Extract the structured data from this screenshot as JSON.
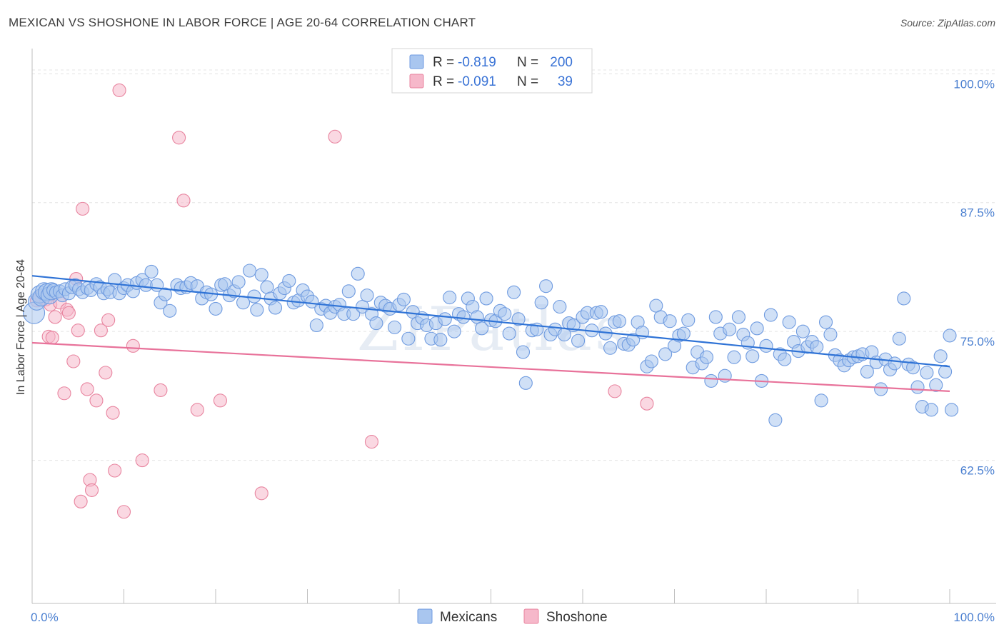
{
  "title": "MEXICAN VS SHOSHONE IN LABOR FORCE | AGE 20-64 CORRELATION CHART",
  "source": "Source: ZipAtlas.com",
  "watermark": "ZIPatlas",
  "legend_top": [
    {
      "r_label": "R =",
      "r_value": "-0.819",
      "n_label": "N =",
      "n_value": "200",
      "color": "#a9c6ef",
      "stroke": "#6f9be0"
    },
    {
      "r_label": "R =",
      "r_value": "-0.091",
      "n_label": "N =",
      "n_value": "39",
      "color": "#f6b8ca",
      "stroke": "#e8849f"
    }
  ],
  "legend_bottom": [
    {
      "label": "Mexicans",
      "color": "#a9c6ef",
      "stroke": "#6f9be0"
    },
    {
      "label": "Shoshone",
      "color": "#f6b8ca",
      "stroke": "#e8849f"
    }
  ],
  "chart_data": {
    "type": "scatter",
    "title": "MEXICAN VS SHOSHONE IN LABOR FORCE | AGE 20-64 CORRELATION CHART",
    "xlabel": "",
    "ylabel": "In Labor Force | Age 20-64",
    "xlim": [
      0,
      100
    ],
    "ylim": [
      50,
      103
    ],
    "x_tick_labels": [
      "0.0%",
      "100.0%"
    ],
    "y_ticks": [
      100.0,
      87.5,
      75.0,
      62.5
    ],
    "y_tick_labels": [
      "100.0%",
      "87.5%",
      "75.0%",
      "62.5%"
    ],
    "grid": "horizontal dashed",
    "legend_position": "top-center",
    "series": [
      {
        "name": "Mexicans",
        "color": "#6f9be0",
        "fill": "#a9c6ef",
        "trend": {
          "x": [
            0,
            100
          ],
          "y": [
            80.4,
            71.6
          ]
        },
        "points": [
          [
            0.2,
            76.8
          ],
          [
            0.5,
            77.9
          ],
          [
            0.8,
            78.6
          ],
          [
            1.0,
            78.3
          ],
          [
            1.3,
            78.9
          ],
          [
            1.6,
            78.8
          ],
          [
            1.9,
            78.5
          ],
          [
            2.1,
            78.9
          ],
          [
            2.3,
            79.0
          ],
          [
            2.6,
            78.8
          ],
          [
            3.0,
            78.9
          ],
          [
            3.3,
            78.5
          ],
          [
            3.6,
            79.1
          ],
          [
            4.0,
            78.7
          ],
          [
            4.3,
            79.3
          ],
          [
            4.7,
            79.5
          ],
          [
            5.1,
            79.1
          ],
          [
            5.5,
            78.8
          ],
          [
            6.0,
            79.2
          ],
          [
            6.4,
            79.0
          ],
          [
            7.0,
            79.6
          ],
          [
            7.4,
            79.3
          ],
          [
            7.8,
            78.7
          ],
          [
            8.2,
            79.1
          ],
          [
            8.5,
            78.8
          ],
          [
            9.0,
            80.0
          ],
          [
            9.5,
            78.7
          ],
          [
            10.0,
            79.2
          ],
          [
            10.4,
            79.5
          ],
          [
            11.0,
            78.9
          ],
          [
            11.4,
            79.7
          ],
          [
            12.0,
            80.0
          ],
          [
            12.4,
            79.5
          ],
          [
            13.0,
            80.8
          ],
          [
            13.6,
            79.5
          ],
          [
            14.0,
            77.8
          ],
          [
            14.5,
            78.6
          ],
          [
            15.0,
            77.0
          ],
          [
            15.8,
            79.5
          ],
          [
            16.2,
            79.2
          ],
          [
            16.8,
            79.3
          ],
          [
            17.3,
            79.7
          ],
          [
            18.0,
            79.4
          ],
          [
            18.5,
            78.2
          ],
          [
            19.0,
            78.8
          ],
          [
            19.5,
            78.6
          ],
          [
            20.0,
            77.2
          ],
          [
            20.6,
            79.5
          ],
          [
            21.0,
            79.6
          ],
          [
            21.5,
            78.5
          ],
          [
            22.0,
            78.9
          ],
          [
            22.5,
            79.8
          ],
          [
            23.0,
            77.8
          ],
          [
            23.7,
            80.9
          ],
          [
            24.2,
            78.4
          ],
          [
            24.5,
            77.1
          ],
          [
            25.0,
            80.5
          ],
          [
            25.6,
            79.3
          ],
          [
            26.0,
            78.2
          ],
          [
            26.5,
            77.3
          ],
          [
            27.0,
            78.7
          ],
          [
            27.5,
            79.2
          ],
          [
            28.0,
            79.9
          ],
          [
            28.5,
            77.8
          ],
          [
            29.0,
            78.0
          ],
          [
            29.5,
            79.0
          ],
          [
            30.0,
            78.4
          ],
          [
            30.5,
            77.9
          ],
          [
            31.0,
            75.6
          ],
          [
            31.5,
            77.2
          ],
          [
            32.0,
            77.5
          ],
          [
            32.5,
            76.8
          ],
          [
            33.0,
            77.4
          ],
          [
            33.5,
            77.6
          ],
          [
            34.0,
            76.7
          ],
          [
            34.5,
            78.9
          ],
          [
            35.0,
            76.7
          ],
          [
            35.5,
            80.6
          ],
          [
            36.0,
            77.4
          ],
          [
            36.5,
            78.5
          ],
          [
            37.0,
            76.7
          ],
          [
            37.5,
            75.8
          ],
          [
            38.0,
            77.8
          ],
          [
            38.5,
            77.5
          ],
          [
            39.0,
            77.2
          ],
          [
            39.5,
            75.4
          ],
          [
            40.0,
            77.6
          ],
          [
            40.5,
            78.1
          ],
          [
            41.0,
            74.3
          ],
          [
            41.5,
            76.9
          ],
          [
            42.0,
            75.8
          ],
          [
            42.5,
            76.3
          ],
          [
            43.0,
            75.6
          ],
          [
            43.5,
            74.3
          ],
          [
            44.0,
            75.8
          ],
          [
            44.5,
            74.2
          ],
          [
            45.0,
            76.2
          ],
          [
            45.5,
            78.3
          ],
          [
            46.0,
            75.0
          ],
          [
            46.5,
            76.7
          ],
          [
            47.0,
            76.4
          ],
          [
            47.5,
            78.2
          ],
          [
            48.0,
            77.4
          ],
          [
            48.5,
            76.4
          ],
          [
            49.0,
            75.3
          ],
          [
            49.5,
            78.2
          ],
          [
            50.0,
            76.1
          ],
          [
            50.5,
            76.0
          ],
          [
            51.0,
            77.0
          ],
          [
            51.5,
            76.7
          ],
          [
            52.0,
            74.8
          ],
          [
            52.5,
            78.8
          ],
          [
            53.0,
            76.2
          ],
          [
            53.5,
            73.0
          ],
          [
            53.8,
            70.0
          ],
          [
            54.5,
            75.1
          ],
          [
            55.0,
            75.2
          ],
          [
            55.5,
            77.8
          ],
          [
            56.0,
            79.4
          ],
          [
            56.5,
            74.7
          ],
          [
            57.0,
            75.2
          ],
          [
            57.5,
            77.4
          ],
          [
            58.0,
            74.7
          ],
          [
            58.5,
            75.8
          ],
          [
            59.0,
            75.6
          ],
          [
            59.5,
            74.1
          ],
          [
            60.0,
            76.4
          ],
          [
            60.5,
            76.8
          ],
          [
            61.0,
            75.1
          ],
          [
            61.5,
            76.8
          ],
          [
            62.0,
            76.9
          ],
          [
            62.5,
            74.8
          ],
          [
            63.0,
            73.4
          ],
          [
            63.5,
            75.9
          ],
          [
            64.0,
            76.0
          ],
          [
            64.5,
            73.8
          ],
          [
            65.0,
            73.7
          ],
          [
            65.5,
            74.2
          ],
          [
            66.0,
            75.9
          ],
          [
            66.5,
            74.9
          ],
          [
            67.0,
            71.6
          ],
          [
            67.5,
            72.1
          ],
          [
            68.0,
            77.5
          ],
          [
            68.5,
            76.4
          ],
          [
            69.0,
            72.8
          ],
          [
            69.5,
            76.0
          ],
          [
            70.0,
            73.6
          ],
          [
            70.5,
            74.6
          ],
          [
            71.0,
            74.8
          ],
          [
            71.5,
            76.1
          ],
          [
            72.0,
            71.5
          ],
          [
            72.5,
            73.0
          ],
          [
            73.0,
            71.9
          ],
          [
            73.5,
            72.5
          ],
          [
            74.0,
            70.2
          ],
          [
            74.5,
            76.4
          ],
          [
            75.0,
            74.8
          ],
          [
            75.5,
            70.7
          ],
          [
            76.0,
            75.2
          ],
          [
            76.5,
            72.5
          ],
          [
            77.0,
            76.4
          ],
          [
            77.5,
            74.7
          ],
          [
            78.0,
            73.9
          ],
          [
            78.5,
            72.6
          ],
          [
            79.0,
            75.3
          ],
          [
            79.5,
            70.2
          ],
          [
            80.0,
            73.6
          ],
          [
            80.5,
            76.6
          ],
          [
            81.0,
            66.4
          ],
          [
            81.5,
            72.8
          ],
          [
            82.0,
            72.3
          ],
          [
            82.5,
            75.9
          ],
          [
            83.0,
            74.0
          ],
          [
            83.5,
            73.1
          ],
          [
            84.0,
            75.0
          ],
          [
            84.5,
            73.5
          ],
          [
            85.0,
            74.0
          ],
          [
            85.5,
            73.5
          ],
          [
            86.0,
            68.3
          ],
          [
            86.5,
            75.9
          ],
          [
            87.0,
            74.7
          ],
          [
            87.5,
            72.7
          ],
          [
            88.0,
            72.2
          ],
          [
            88.5,
            71.7
          ],
          [
            89.0,
            72.2
          ],
          [
            89.5,
            72.5
          ],
          [
            90.0,
            72.6
          ],
          [
            90.5,
            72.8
          ],
          [
            91.0,
            71.1
          ],
          [
            91.5,
            73.0
          ],
          [
            92.0,
            72.0
          ],
          [
            92.5,
            69.4
          ],
          [
            93.0,
            72.3
          ],
          [
            93.5,
            71.3
          ],
          [
            94.0,
            71.9
          ],
          [
            94.5,
            74.3
          ],
          [
            95.0,
            78.2
          ],
          [
            95.5,
            71.8
          ],
          [
            96.0,
            71.5
          ],
          [
            96.5,
            69.6
          ],
          [
            97.0,
            67.7
          ],
          [
            97.5,
            71.0
          ],
          [
            98.0,
            67.4
          ],
          [
            98.5,
            69.8
          ],
          [
            99.0,
            72.6
          ],
          [
            99.5,
            71.1
          ],
          [
            100.0,
            74.6
          ],
          [
            100.2,
            67.4
          ]
        ]
      },
      {
        "name": "Shoshone",
        "color": "#e8849f",
        "fill": "#f6b8ca",
        "trend": {
          "x": [
            0,
            100
          ],
          "y": [
            73.9,
            69.2
          ]
        },
        "points": [
          [
            0.5,
            78.0
          ],
          [
            1.0,
            78.4
          ],
          [
            1.5,
            78.1
          ],
          [
            1.8,
            74.5
          ],
          [
            2.0,
            77.6
          ],
          [
            2.2,
            74.4
          ],
          [
            2.5,
            76.4
          ],
          [
            3.0,
            77.8
          ],
          [
            3.5,
            69.0
          ],
          [
            3.8,
            77.1
          ],
          [
            4.0,
            76.8
          ],
          [
            4.5,
            72.1
          ],
          [
            4.8,
            80.1
          ],
          [
            5.0,
            75.1
          ],
          [
            5.5,
            86.9
          ],
          [
            5.3,
            58.5
          ],
          [
            6.0,
            69.4
          ],
          [
            6.3,
            60.6
          ],
          [
            6.5,
            59.6
          ],
          [
            7.0,
            68.3
          ],
          [
            7.5,
            75.1
          ],
          [
            8.0,
            71.0
          ],
          [
            8.3,
            76.1
          ],
          [
            8.8,
            67.1
          ],
          [
            9.0,
            61.5
          ],
          [
            9.5,
            98.4
          ],
          [
            10.0,
            57.5
          ],
          [
            11.0,
            73.6
          ],
          [
            12.0,
            62.5
          ],
          [
            14.0,
            69.3
          ],
          [
            16.0,
            93.8
          ],
          [
            16.5,
            87.7
          ],
          [
            18.0,
            67.4
          ],
          [
            20.5,
            68.3
          ],
          [
            25.0,
            59.3
          ],
          [
            33.0,
            93.9
          ],
          [
            37.0,
            64.3
          ],
          [
            63.5,
            69.2
          ],
          [
            67.0,
            68.0
          ]
        ]
      }
    ]
  }
}
